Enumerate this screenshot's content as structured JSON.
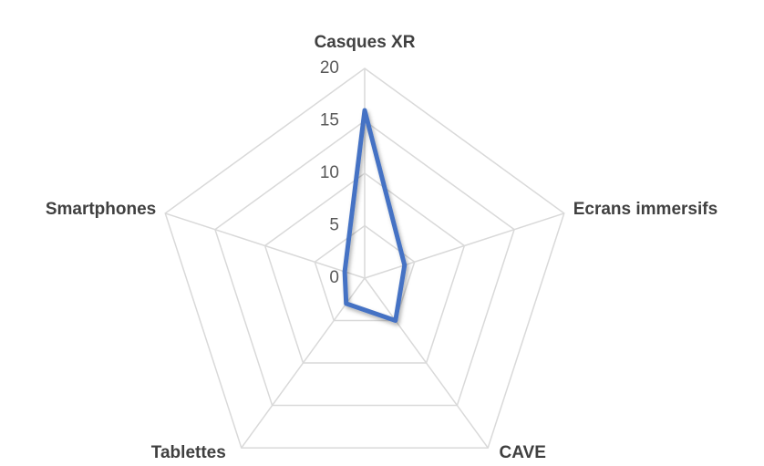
{
  "chart_data": {
    "type": "radar",
    "categories": [
      "Casques XR",
      "Ecrans immersifs",
      "CAVE",
      "Tablettes",
      "Smartphones"
    ],
    "series": [
      {
        "color": "#4472c4",
        "values": [
          16,
          4,
          5,
          3,
          2
        ]
      }
    ],
    "rlim": [
      0,
      20
    ],
    "rticks": [
      0,
      5,
      10,
      15,
      20
    ],
    "grid": true
  }
}
